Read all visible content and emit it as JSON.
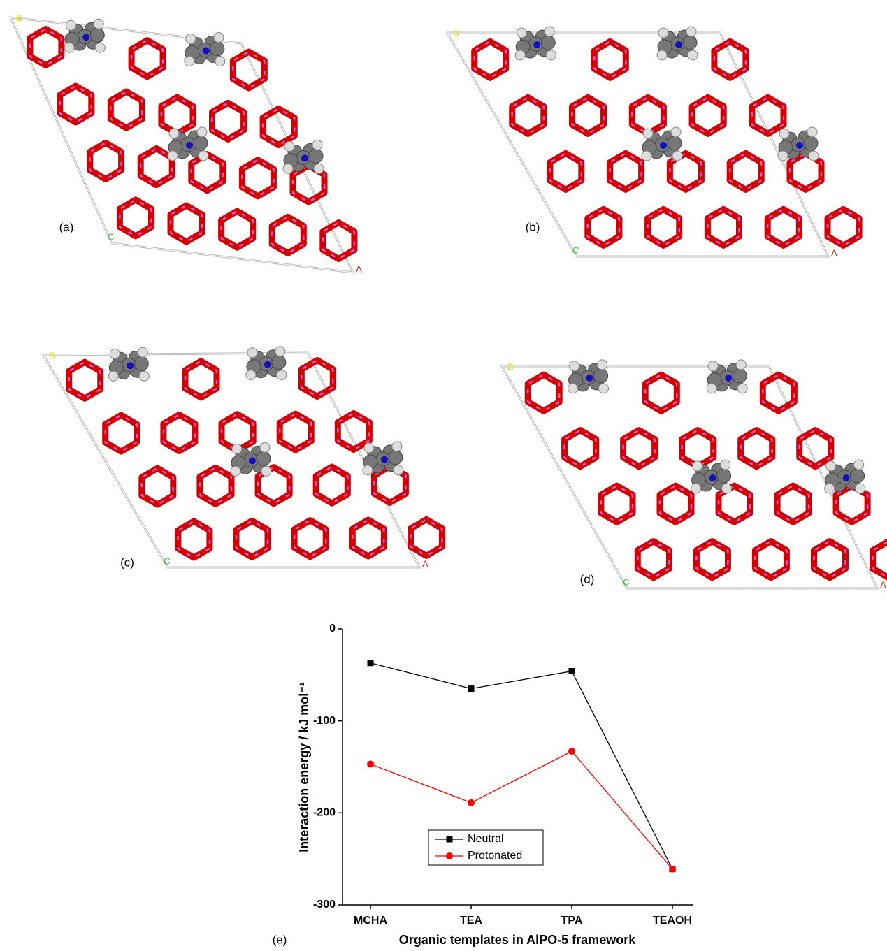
{
  "panels": [
    {
      "label": "(a)",
      "axes": [
        "B",
        "C",
        "A"
      ]
    },
    {
      "label": "(b)",
      "axes": [
        "B",
        "C",
        "A"
      ]
    },
    {
      "label": "(c)",
      "axes": [
        "B",
        "C",
        "A"
      ]
    },
    {
      "label": "(d)",
      "axes": [
        "B",
        "C",
        "A"
      ]
    }
  ],
  "chart_data": {
    "type": "line",
    "panel_label": "(e)",
    "xlabel": "Organic templates in AlPO-5 framework",
    "ylabel": "Interaction energy / kJ mol⁻¹",
    "categories": [
      "MCHA",
      "TEA",
      "TPA",
      "TEAOH"
    ],
    "series": [
      {
        "name": "Neutral",
        "color": "#000000",
        "marker": "square",
        "values": [
          -37,
          -65,
          -46,
          -261
        ]
      },
      {
        "name": "Protonated",
        "color": "#ff0000",
        "marker": "circle",
        "values": [
          -147,
          -189,
          -133,
          -261
        ]
      }
    ],
    "ylim": [
      -300,
      0
    ],
    "yticks": [
      0,
      -100,
      -200,
      -300
    ],
    "legend": "lower center",
    "grid": false
  }
}
